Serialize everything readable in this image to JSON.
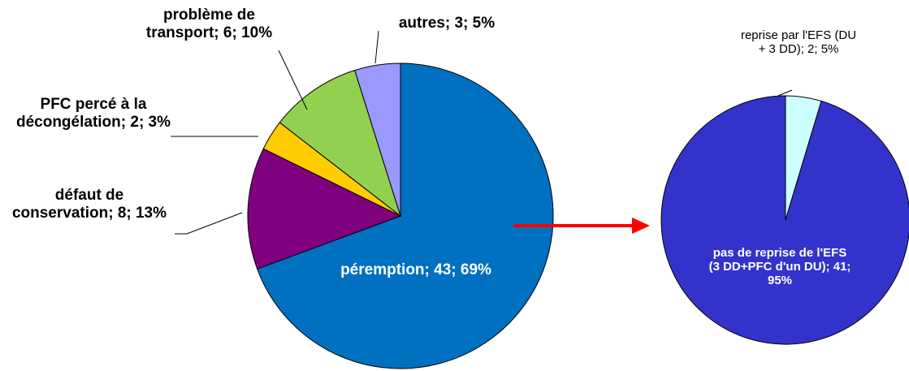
{
  "chart_data": [
    {
      "type": "pie",
      "values": [
        43,
        8,
        2,
        6,
        3
      ],
      "value_labels": [
        "péremption; 43; 69%",
        "défaut de conservation; 8; 13%",
        "PFC percé à la décongélation; 2; 3%",
        "problème de transport; 6; 10%",
        "autres; 3; 5%"
      ],
      "colors": [
        "#0070c0",
        "#800080",
        "#ffcc00",
        "#92d050",
        "#9999ff"
      ]
    },
    {
      "type": "pie",
      "values": [
        2,
        41
      ],
      "value_labels": [
        "reprise par l'EFS (DU + 3 DD); 2; 5%",
        "pas de reprise de l'EFS (3 DD+PFC d'un DU); 41; 95%"
      ],
      "colors": [
        "#ccffff",
        "#3333cc"
      ]
    }
  ]
}
